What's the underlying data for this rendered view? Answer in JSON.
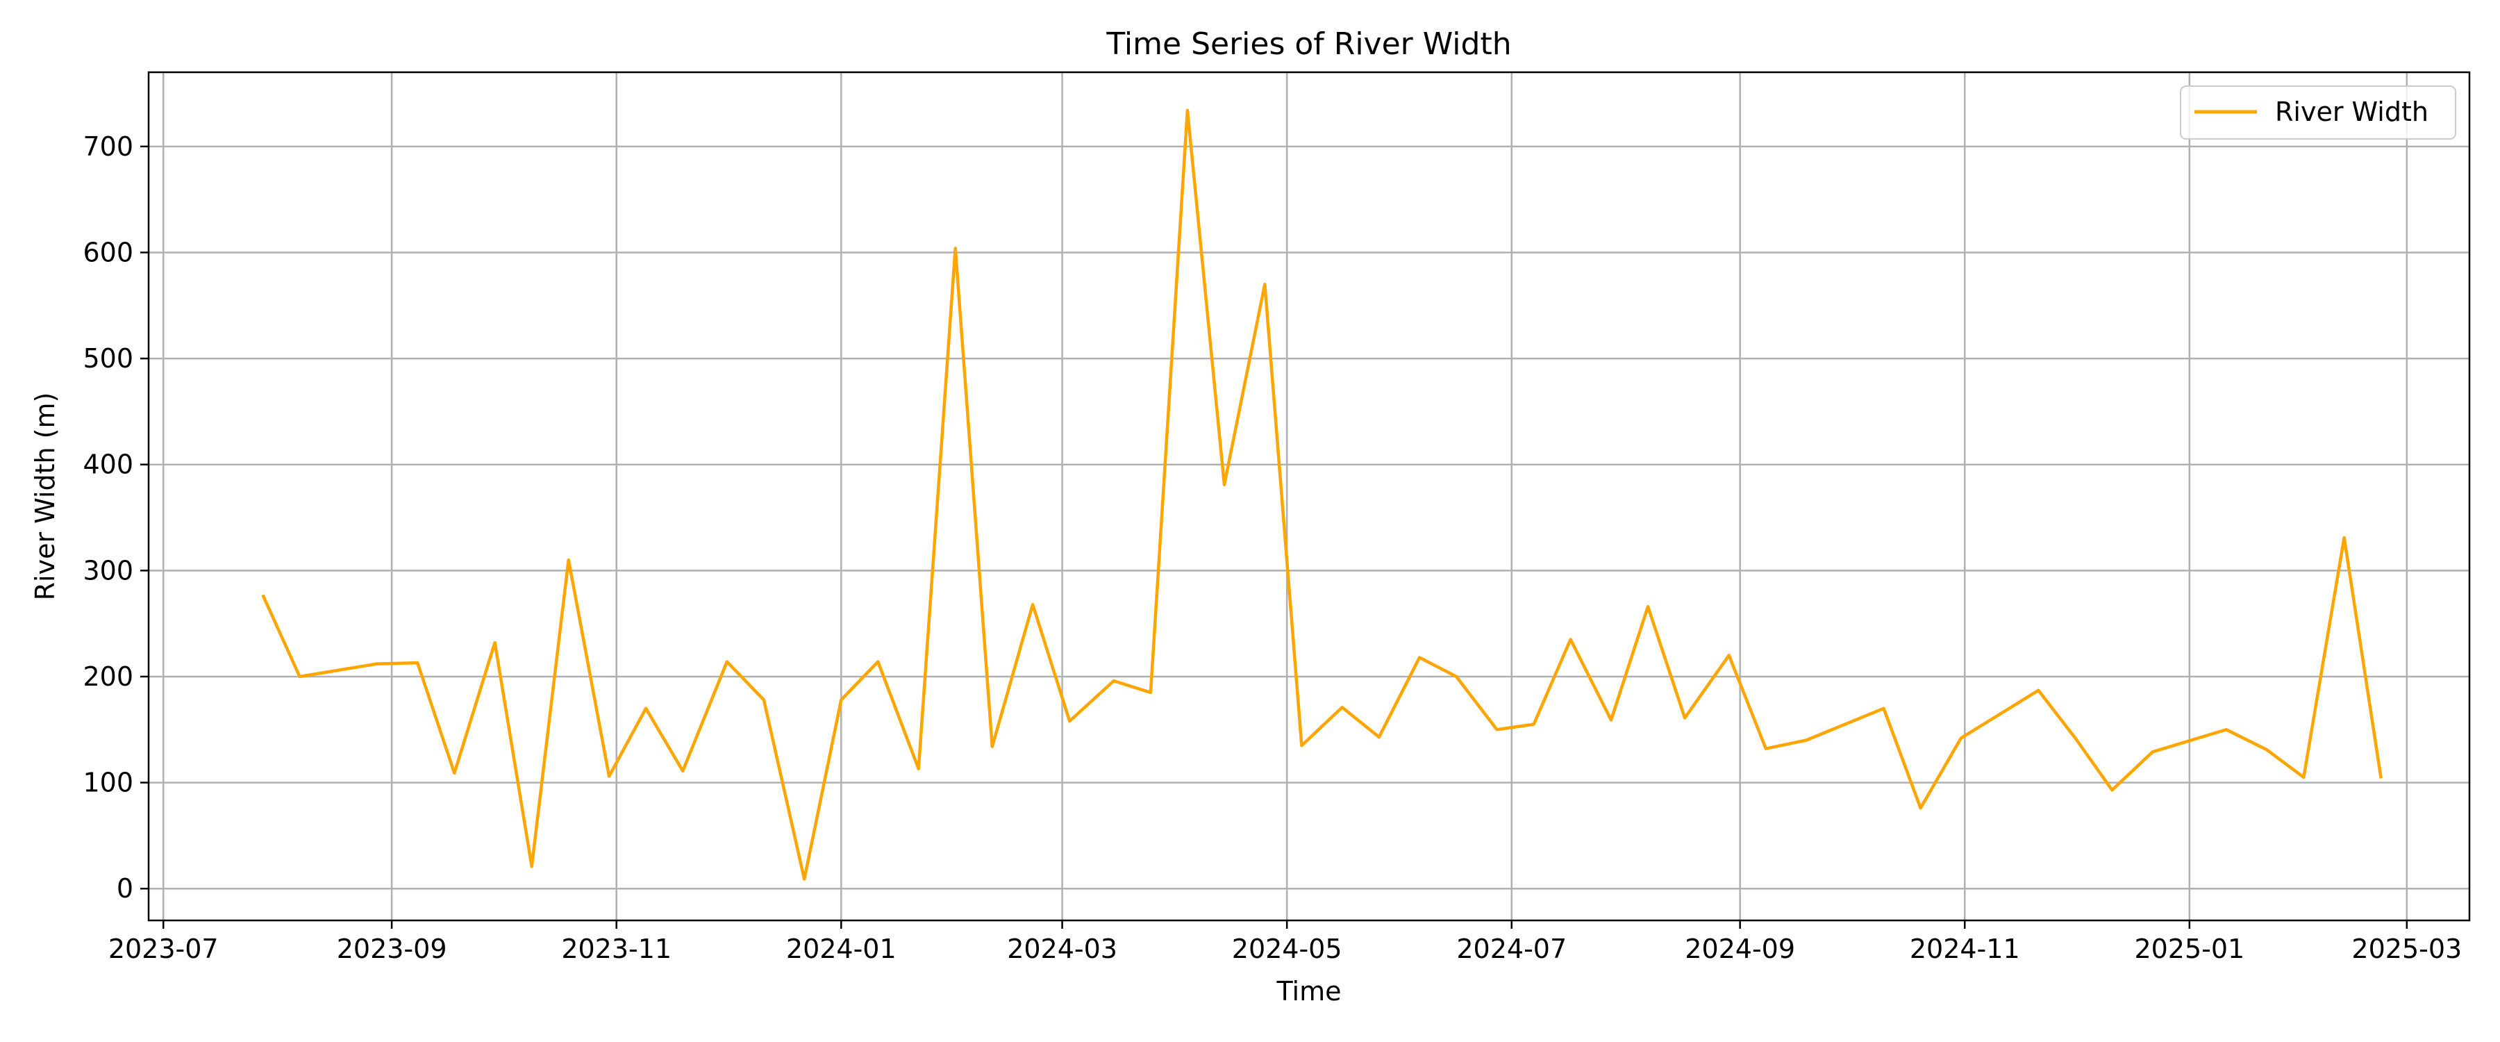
{
  "chart_data": {
    "type": "line",
    "title": "Time Series of River Width",
    "xlabel": "Time",
    "ylabel": "River Width (m)",
    "xlim": [
      "2023-06-27",
      "2025-03-18"
    ],
    "ylim": [
      -30,
      770
    ],
    "x_ticks": [
      "2023-07",
      "2023-09",
      "2023-11",
      "2024-01",
      "2024-03",
      "2024-05",
      "2024-07",
      "2024-09",
      "2024-11",
      "2025-01",
      "2025-03"
    ],
    "y_ticks": [
      0,
      100,
      200,
      300,
      400,
      500,
      600,
      700
    ],
    "grid": true,
    "legend_position": "top-right",
    "series": [
      {
        "name": "River Width",
        "color": "#FFA500",
        "x": [
          "2023-07-28",
          "2023-08-07",
          "2023-08-28",
          "2023-09-08",
          "2023-09-18",
          "2023-09-29",
          "2023-10-09",
          "2023-10-19",
          "2023-10-30",
          "2023-11-09",
          "2023-11-19",
          "2023-12-01",
          "2023-12-11",
          "2023-12-22",
          "2024-01-01",
          "2024-01-11",
          "2024-01-22",
          "2024-02-01",
          "2024-02-11",
          "2024-02-22",
          "2024-03-03",
          "2024-03-15",
          "2024-03-25",
          "2024-04-04",
          "2024-04-14",
          "2024-04-25",
          "2024-05-05",
          "2024-05-16",
          "2024-05-26",
          "2024-06-06",
          "2024-06-16",
          "2024-06-27",
          "2024-07-07",
          "2024-07-17",
          "2024-07-28",
          "2024-08-07",
          "2024-08-17",
          "2024-08-29",
          "2024-09-08",
          "2024-09-19",
          "2024-10-10",
          "2024-10-20",
          "2024-10-31",
          "2024-11-21",
          "2024-12-01",
          "2024-12-11",
          "2024-12-22",
          "2025-01-11",
          "2025-01-22",
          "2025-02-01",
          "2025-02-12",
          "2025-02-22"
        ],
        "values": [
          277,
          200,
          212,
          213,
          109,
          232,
          21,
          310,
          106,
          170,
          111,
          214,
          178,
          9,
          178,
          214,
          113,
          604,
          134,
          268,
          158,
          196,
          185,
          734,
          381,
          570,
          135,
          171,
          143,
          218,
          200,
          150,
          155,
          235,
          159,
          266,
          161,
          220,
          132,
          140,
          170,
          76,
          142,
          187,
          142,
          93,
          129,
          150,
          131,
          105,
          331,
          104
        ]
      }
    ]
  }
}
